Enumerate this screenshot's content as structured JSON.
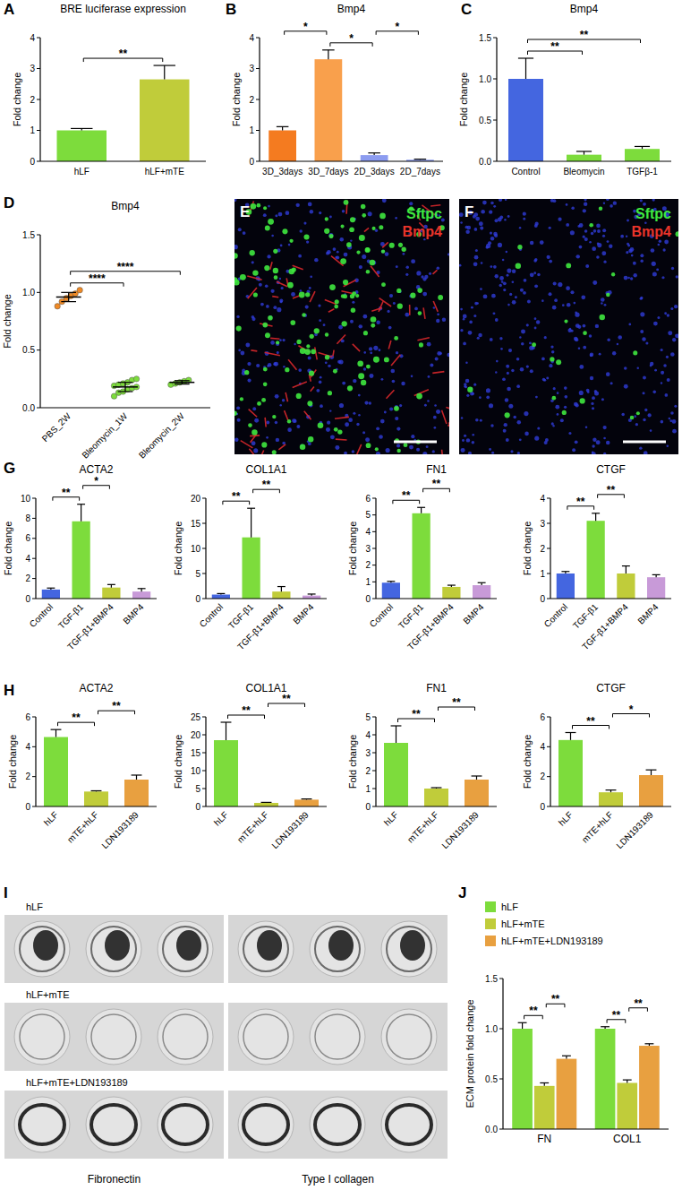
{
  "chart_data": [
    {
      "panel_label": "A",
      "type": "bar",
      "title": "BRE luciferase expression",
      "ylabel": "Fold change",
      "categories": [
        "hLF",
        "hLF+mTE"
      ],
      "values": [
        1.0,
        2.65
      ],
      "errors": [
        0.06,
        0.45
      ],
      "colors": [
        "#7ddc3c",
        "#c0cc3a"
      ],
      "ylim": [
        0,
        4
      ],
      "yticks": [
        0,
        1,
        2,
        3,
        4
      ],
      "annotations": [
        {
          "text": "**",
          "between": [
            "hLF",
            "hLF+mTE"
          ]
        }
      ]
    },
    {
      "panel_label": "B",
      "type": "bar",
      "title": "Bmp4",
      "ylabel": "Fold change",
      "categories": [
        "3D_3days",
        "3D_7days",
        "2D_3days",
        "2D_7days"
      ],
      "values": [
        1.0,
        3.3,
        0.2,
        0.05
      ],
      "errors": [
        0.12,
        0.3,
        0.07,
        0.02
      ],
      "colors": [
        "#f47b20",
        "#f9a04c",
        "#8c9cf0",
        "#8c9cf0"
      ],
      "ylim": [
        0,
        4
      ],
      "yticks": [
        0,
        1,
        2,
        3,
        4
      ],
      "annotations": [
        {
          "text": "*",
          "between": [
            "3D_7days",
            "2D_3days"
          ]
        },
        {
          "text": "*",
          "between": [
            "3D_3days",
            "3D_7days"
          ]
        },
        {
          "text": "*",
          "between": [
            "2D_3days",
            "2D_7days"
          ]
        }
      ]
    },
    {
      "panel_label": "C",
      "type": "bar",
      "title": "Bmp4",
      "ylabel": "Fold change",
      "categories": [
        "Control",
        "Bleomycin",
        "TGFβ-1"
      ],
      "values": [
        1.0,
        0.08,
        0.15
      ],
      "errors": [
        0.25,
        0.04,
        0.03
      ],
      "colors": [
        "#4466e0",
        "#7ddc3c",
        "#7ddc3c"
      ],
      "ylim": [
        0,
        1.5
      ],
      "yticks": [
        {
          "value": 0,
          "label": "0.0"
        },
        {
          "value": 0.5,
          "label": "0.5"
        },
        {
          "value": 1,
          "label": "1.0"
        },
        {
          "value": 1.5,
          "label": "1.5"
        }
      ],
      "annotations": [
        {
          "text": "**",
          "between": [
            "Control",
            "Bleomycin"
          ]
        },
        {
          "text": "**",
          "between": [
            "Control",
            "TGFβ-1"
          ]
        }
      ]
    },
    {
      "panel_label": "D",
      "type": "strip",
      "title": "Bmp4",
      "ylabel": "Fold change",
      "categories": [
        "PBS_2W",
        "Bleomycin_1W",
        "Bleomycin_2W"
      ],
      "values": [
        [
          0.88,
          0.92,
          0.95,
          0.97,
          0.99,
          1.02
        ],
        [
          0.1,
          0.13,
          0.14,
          0.16,
          0.17,
          0.18,
          0.19,
          0.2,
          0.21,
          0.22,
          0.24,
          0.25
        ],
        [
          0.2,
          0.21,
          0.22,
          0.23,
          0.24
        ]
      ],
      "means": [
        0.96,
        0.18,
        0.22
      ],
      "errors": [
        0.04,
        0.04,
        0.015
      ],
      "colors": [
        "#f08a24",
        "#7ddc3c",
        "#7ddc3c"
      ],
      "ylim": [
        0,
        1.5
      ],
      "yticks": [
        {
          "value": 0,
          "label": "0.0"
        },
        {
          "value": 0.5,
          "label": "0.5"
        },
        {
          "value": 1,
          "label": "1.0"
        },
        {
          "value": 1.5,
          "label": "1.5"
        }
      ],
      "annotations": [
        {
          "text": "****",
          "between": [
            "PBS_2W",
            "Bleomycin_1W"
          ]
        },
        {
          "text": "****",
          "between": [
            "PBS_2W",
            "Bleomycin_2W"
          ]
        }
      ]
    },
    {
      "panel_label": "G",
      "type": "bar",
      "title": "ACTA2",
      "ylabel": "Fold change",
      "categories": [
        "Control",
        "TGF-β1",
        "TGF-β1+BMP4",
        "BMP4"
      ],
      "values": [
        0.9,
        7.7,
        1.1,
        0.7
      ],
      "errors": [
        0.15,
        1.7,
        0.3,
        0.3
      ],
      "colors": [
        "#4466e0",
        "#7ddc3c",
        "#c0cc3a",
        "#c89ad8"
      ],
      "ylim": [
        0,
        10
      ],
      "yticks": [
        0,
        2,
        4,
        6,
        8,
        10
      ],
      "annotations": [
        {
          "text": "**",
          "between": [
            "Control",
            "TGF-β1"
          ]
        },
        {
          "text": "*",
          "between": [
            "TGF-β1",
            "TGF-β1+BMP4"
          ]
        }
      ]
    },
    {
      "type": "bar",
      "title": "COL1A1",
      "ylabel": "Fold change",
      "categories": [
        "Control",
        "TGF-β1",
        "TGF-β1+BMP4",
        "BMP4"
      ],
      "values": [
        0.8,
        12.2,
        1.4,
        0.6
      ],
      "errors": [
        0.2,
        5.8,
        1.0,
        0.3
      ],
      "colors": [
        "#4466e0",
        "#7ddc3c",
        "#c0cc3a",
        "#c89ad8"
      ],
      "ylim": [
        0,
        20
      ],
      "yticks": [
        0,
        5,
        10,
        15,
        20
      ],
      "annotations": [
        {
          "text": "**",
          "between": [
            "Control",
            "TGF-β1"
          ]
        },
        {
          "text": "**",
          "between": [
            "TGF-β1",
            "TGF-β1+BMP4"
          ]
        }
      ]
    },
    {
      "type": "bar",
      "title": "FN1",
      "ylabel": "Fold change",
      "categories": [
        "Control",
        "TGF-β1",
        "TGF-β1+BMP4",
        "BMP4"
      ],
      "values": [
        0.95,
        5.1,
        0.7,
        0.8
      ],
      "errors": [
        0.08,
        0.35,
        0.1,
        0.15
      ],
      "colors": [
        "#4466e0",
        "#7ddc3c",
        "#c0cc3a",
        "#c89ad8"
      ],
      "ylim": [
        0,
        6
      ],
      "yticks": [
        0,
        1,
        2,
        3,
        4,
        5,
        6
      ],
      "annotations": [
        {
          "text": "**",
          "between": [
            "Control",
            "TGF-β1"
          ]
        },
        {
          "text": "**",
          "between": [
            "TGF-β1",
            "TGF-β1+BMP4"
          ]
        }
      ]
    },
    {
      "type": "bar",
      "title": "CTGF",
      "ylabel": "Fold change",
      "categories": [
        "Control",
        "TGF-β1",
        "TGF-β1+BMP4",
        "BMP4"
      ],
      "values": [
        1.0,
        3.1,
        1.0,
        0.85
      ],
      "errors": [
        0.08,
        0.3,
        0.3,
        0.1
      ],
      "colors": [
        "#4466e0",
        "#7ddc3c",
        "#c0cc3a",
        "#c89ad8"
      ],
      "ylim": [
        0,
        4
      ],
      "yticks": [
        0,
        1,
        2,
        3,
        4
      ],
      "annotations": [
        {
          "text": "**",
          "between": [
            "Control",
            "TGF-β1"
          ]
        },
        {
          "text": "**",
          "between": [
            "TGF-β1",
            "TGF-β1+BMP4"
          ]
        }
      ]
    },
    {
      "panel_label": "H",
      "type": "bar",
      "title": "ACTA2",
      "ylabel": "Fold change",
      "categories": [
        "hLF",
        "mTE+hLF",
        "LDN193189"
      ],
      "values": [
        4.65,
        1.0,
        1.8
      ],
      "errors": [
        0.5,
        0.05,
        0.3
      ],
      "colors": [
        "#7ddc3c",
        "#c0cc3a",
        "#e8a040"
      ],
      "ylim": [
        0,
        6
      ],
      "yticks": [
        0,
        2,
        4,
        6
      ],
      "annotations": [
        {
          "text": "**",
          "between": [
            "hLF",
            "mTE+hLF"
          ]
        },
        {
          "text": "**",
          "between": [
            "mTE+hLF",
            "LDN193189"
          ]
        }
      ]
    },
    {
      "type": "bar",
      "title": "COL1A1",
      "ylabel": "Fold change",
      "categories": [
        "hLF",
        "mTE+hLF",
        "LDN193189"
      ],
      "values": [
        18.5,
        1.0,
        1.9
      ],
      "errors": [
        5.0,
        0.15,
        0.2
      ],
      "colors": [
        "#7ddc3c",
        "#c0cc3a",
        "#e8a040"
      ],
      "ylim": [
        0,
        25
      ],
      "yticks": [
        0,
        5,
        10,
        15,
        20,
        25
      ],
      "annotations": [
        {
          "text": "**",
          "between": [
            "hLF",
            "mTE+hLF"
          ]
        },
        {
          "text": "**",
          "between": [
            "mTE+hLF",
            "LDN193189"
          ]
        }
      ]
    },
    {
      "type": "bar",
      "title": "FN1",
      "ylabel": "Fold change",
      "categories": [
        "hLF",
        "mTE+hLF",
        "LDN193189"
      ],
      "values": [
        3.55,
        1.0,
        1.5
      ],
      "errors": [
        0.95,
        0.05,
        0.2
      ],
      "colors": [
        "#7ddc3c",
        "#c0cc3a",
        "#e8a040"
      ],
      "ylim": [
        0,
        5
      ],
      "yticks": [
        0,
        1,
        2,
        3,
        4,
        5
      ],
      "annotations": [
        {
          "text": "**",
          "between": [
            "hLF",
            "mTE+hLF"
          ]
        },
        {
          "text": "**",
          "between": [
            "mTE+hLF",
            "LDN193189"
          ]
        }
      ]
    },
    {
      "type": "bar",
      "title": "CTGF",
      "ylabel": "Fold change",
      "categories": [
        "hLF",
        "mTE+hLF",
        "LDN193189"
      ],
      "values": [
        4.45,
        0.95,
        2.1
      ],
      "errors": [
        0.5,
        0.15,
        0.35
      ],
      "colors": [
        "#7ddc3c",
        "#c0cc3a",
        "#e8a040"
      ],
      "ylim": [
        0,
        6
      ],
      "yticks": [
        0,
        2,
        4,
        6
      ],
      "annotations": [
        {
          "text": "**",
          "between": [
            "hLF",
            "mTE+hLF"
          ]
        },
        {
          "text": "*",
          "between": [
            "mTE+hLF",
            "LDN193189"
          ]
        }
      ]
    },
    {
      "panel_label": "J",
      "type": "bar",
      "ylabel": "ECM protein fold change",
      "categories": [
        "FN",
        "COL1"
      ],
      "series": [
        {
          "name": "hLF",
          "color": "#7ddc3c",
          "values": [
            1.0,
            1.0
          ],
          "errors": [
            0.06,
            0.02
          ]
        },
        {
          "name": "hLF+mTE",
          "color": "#c0cc3a",
          "values": [
            0.43,
            0.46
          ],
          "errors": [
            0.03,
            0.03
          ]
        },
        {
          "name": "hLF+mTE+LDN193189",
          "color": "#e8a040",
          "values": [
            0.7,
            0.83
          ],
          "errors": [
            0.03,
            0.02
          ]
        }
      ],
      "ylim": [
        0,
        1.5
      ],
      "yticks": [
        {
          "value": 0,
          "label": "0.0"
        },
        {
          "value": 0.5,
          "label": "0.5"
        },
        {
          "value": 1,
          "label": "1.0"
        },
        {
          "value": 1.5,
          "label": "1.5"
        }
      ],
      "legend": "top",
      "annotations": [
        {
          "text": "**",
          "category": "FN",
          "between": [
            "hLF",
            "hLF+mTE"
          ]
        },
        {
          "text": "**",
          "category": "FN",
          "between": [
            "hLF+mTE",
            "hLF+mTE+LDN193189"
          ]
        },
        {
          "text": "**",
          "category": "COL1",
          "between": [
            "hLF",
            "hLF+mTE"
          ]
        },
        {
          "text": "**",
          "category": "COL1",
          "between": [
            "hLF+mTE",
            "hLF+mTE+LDN193189"
          ]
        }
      ]
    }
  ],
  "images": [
    {
      "panel_label": "E",
      "labels": [
        {
          "text": "Sftpc",
          "color": "#3fe83f"
        },
        {
          "text": "Bmp4",
          "color": "#e8342a"
        }
      ]
    },
    {
      "panel_label": "F",
      "labels": [
        {
          "text": "Sftpc",
          "color": "#3fe83f"
        },
        {
          "text": "Bmp4",
          "color": "#e8342a"
        }
      ]
    }
  ],
  "blot": {
    "panel_label": "I",
    "rows": [
      "hLF",
      "hLF+mTE",
      "hLF+mTE+LDN193189"
    ],
    "columns": [
      "Fibronectin",
      "Type I collagen"
    ]
  }
}
